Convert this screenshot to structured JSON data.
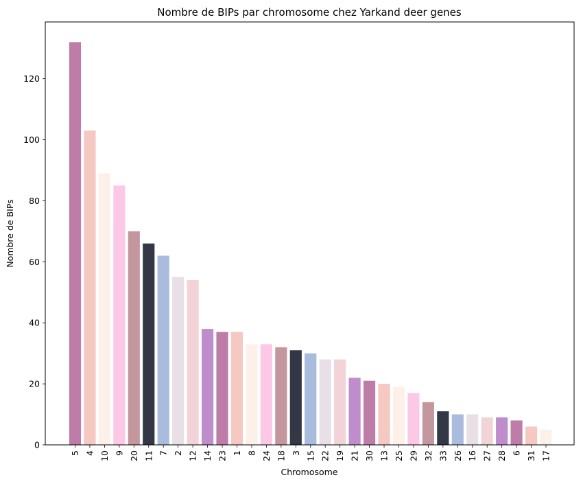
{
  "chart_data": {
    "type": "bar",
    "title": "Nombre de BIPs par chromosome chez Yarkand deer genes",
    "xlabel": "Chromosome",
    "ylabel": "Nombre de BIPs",
    "categories": [
      "5",
      "4",
      "10",
      "9",
      "20",
      "11",
      "7",
      "2",
      "12",
      "14",
      "23",
      "1",
      "8",
      "24",
      "18",
      "3",
      "15",
      "22",
      "19",
      "21",
      "30",
      "13",
      "25",
      "29",
      "32",
      "33",
      "26",
      "16",
      "27",
      "28",
      "6",
      "31",
      "17"
    ],
    "values": [
      132,
      103,
      89,
      85,
      70,
      66,
      62,
      55,
      54,
      38,
      37,
      37,
      33,
      33,
      32,
      31,
      30,
      28,
      28,
      22,
      21,
      20,
      19,
      17,
      14,
      11,
      10,
      10,
      9,
      9,
      8,
      6,
      5
    ],
    "colors": [
      "#be7ca9",
      "#f5c8c2",
      "#fdf0e8",
      "#fcc8e6",
      "#c4979f",
      "#333746",
      "#aabcde",
      "#e8e0e6",
      "#f2d4d8",
      "#bf8ccc"
    ],
    "yticks": [
      0,
      20,
      40,
      60,
      80,
      100,
      120
    ],
    "ylim": [
      0,
      138.6
    ],
    "grid": false
  }
}
